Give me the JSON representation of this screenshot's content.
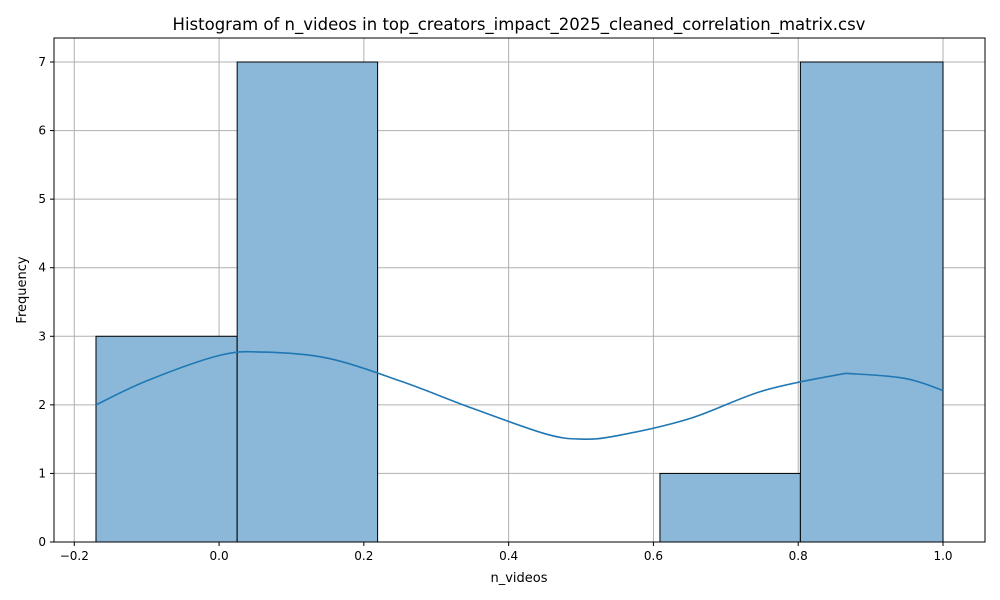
{
  "chart_data": {
    "type": "bar",
    "title": "Histogram of n_videos in top_creators_impact_2025_cleaned_correlation_matrix.csv",
    "xlabel": "n_videos",
    "ylabel": "Frequency",
    "xlim": [
      -0.228,
      1.058
    ],
    "ylim": [
      0,
      7.35
    ],
    "xticks": [
      -0.2,
      0.0,
      0.2,
      0.4,
      0.6,
      0.8,
      1.0
    ],
    "xtick_labels": [
      "−0.2",
      "0.0",
      "0.2",
      "0.4",
      "0.6",
      "0.8",
      "1.0"
    ],
    "yticks": [
      0,
      1,
      2,
      3,
      4,
      5,
      6,
      7
    ],
    "ytick_labels": [
      "0",
      "1",
      "2",
      "3",
      "4",
      "5",
      "6",
      "7"
    ],
    "grid": true,
    "bins": [
      {
        "x0": -0.17,
        "x1": 0.025,
        "count": 3
      },
      {
        "x0": 0.025,
        "x1": 0.219,
        "count": 7
      },
      {
        "x0": 0.219,
        "x1": 0.414,
        "count": 0
      },
      {
        "x0": 0.414,
        "x1": 0.609,
        "count": 0
      },
      {
        "x0": 0.609,
        "x1": 0.803,
        "count": 1
      },
      {
        "x0": 0.803,
        "x1": 1.0,
        "count": 7
      }
    ],
    "kde": {
      "x": [
        -0.17,
        -0.1,
        0.0,
        0.06,
        0.15,
        0.25,
        0.35,
        0.45,
        0.5,
        0.55,
        0.65,
        0.75,
        0.85,
        0.88,
        0.95,
        1.0
      ],
      "y": [
        2.0,
        2.35,
        2.72,
        2.77,
        2.68,
        2.35,
        1.95,
        1.58,
        1.5,
        1.55,
        1.8,
        2.2,
        2.43,
        2.45,
        2.38,
        2.21
      ]
    },
    "colors": {
      "bar_fill": "#8bb8d9",
      "bar_edge": "#000000",
      "kde_line": "#1f77b4",
      "grid": "#b0b0b0"
    }
  }
}
